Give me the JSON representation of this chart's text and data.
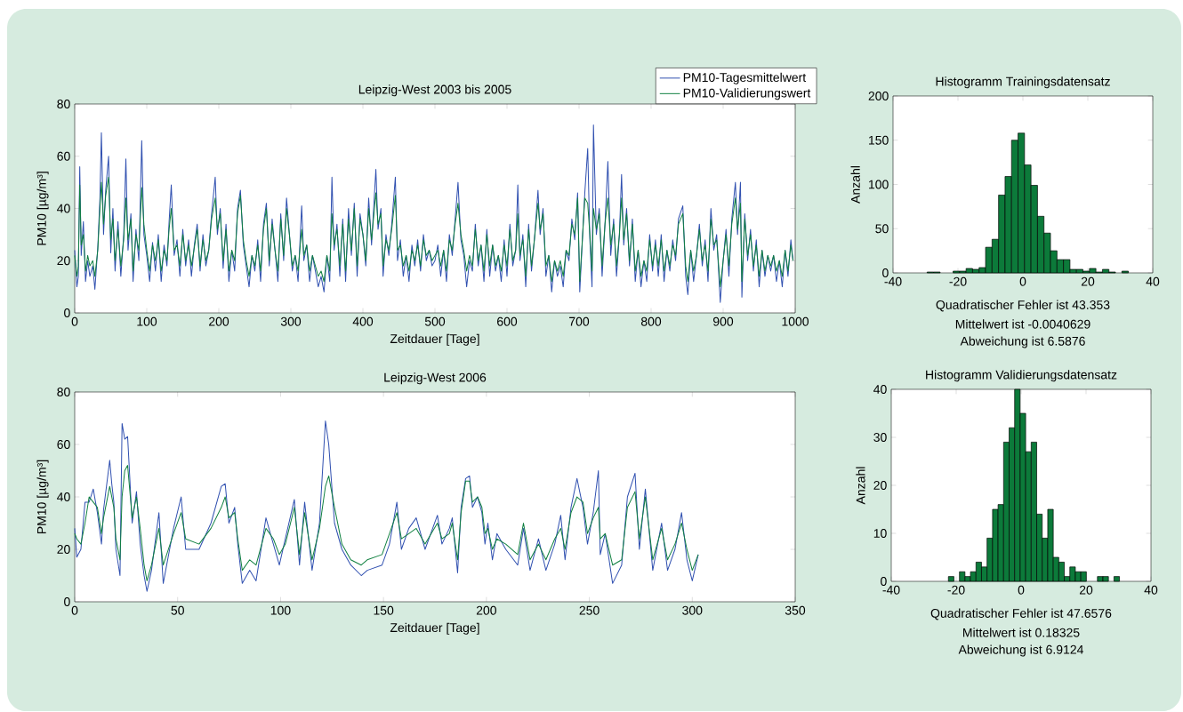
{
  "chart_data": [
    {
      "type": "line",
      "title": "Leipzig-West 2003 bis 2005",
      "xlabel": "Zeitdauer [Tage]",
      "ylabel": "PM10 [µg/m³]",
      "xlim": [
        0,
        1000
      ],
      "ylim": [
        0,
        80
      ],
      "xticks": [
        0,
        100,
        200,
        300,
        400,
        500,
        600,
        700,
        800,
        900,
        1000
      ],
      "yticks": [
        0,
        20,
        40,
        60,
        80
      ],
      "legend": "top right",
      "x": [
        0,
        3,
        5,
        7,
        9,
        12,
        15,
        18,
        21,
        25,
        28,
        32,
        35,
        37,
        40,
        43,
        47,
        50,
        53,
        56,
        60,
        64,
        68,
        71,
        74,
        78,
        81,
        85,
        89,
        93,
        96,
        100,
        104,
        108,
        112,
        116,
        120,
        124,
        128,
        131,
        134,
        138,
        142,
        146,
        150,
        154,
        158,
        162,
        166,
        170,
        174,
        178,
        182,
        186,
        190,
        195,
        198,
        202,
        206,
        210,
        214,
        218,
        222,
        226,
        230,
        234,
        238,
        242,
        246,
        250,
        254,
        258,
        262,
        266,
        270,
        274,
        278,
        282,
        286,
        290,
        294,
        298,
        302,
        306,
        310,
        315,
        318,
        322,
        326,
        330,
        334,
        338,
        342,
        346,
        350,
        354,
        357,
        360,
        364,
        368,
        372,
        376,
        380,
        384,
        388,
        392,
        396,
        400,
        404,
        408,
        412,
        418,
        421,
        425,
        428,
        432,
        436,
        440,
        445,
        448,
        452,
        456,
        460,
        464,
        468,
        472,
        476,
        480,
        484,
        488,
        492,
        496,
        500,
        504,
        508,
        512,
        516,
        520,
        524,
        528,
        532,
        536,
        540,
        544,
        548,
        552,
        556,
        560,
        564,
        568,
        572,
        576,
        580,
        584,
        588,
        592,
        596,
        600,
        604,
        608,
        612,
        615,
        618,
        622,
        626,
        630,
        634,
        638,
        643,
        646,
        650,
        654,
        658,
        662,
        666,
        670,
        674,
        678,
        682,
        686,
        690,
        694,
        698,
        701,
        705,
        708,
        712,
        715,
        718,
        720,
        724,
        728,
        732,
        736,
        740,
        744,
        748,
        752,
        756,
        759,
        762,
        766,
        770,
        774,
        778,
        782,
        786,
        790,
        794,
        798,
        802,
        806,
        810,
        814,
        818,
        822,
        826,
        830,
        834,
        838,
        844,
        848,
        851,
        855,
        859,
        863,
        867,
        871,
        875,
        879,
        883,
        887,
        891,
        896,
        900,
        904,
        908,
        912,
        917,
        920,
        924,
        926,
        930,
        934,
        938,
        942,
        946,
        950,
        954,
        958,
        962,
        966,
        970,
        974,
        978,
        982,
        986,
        990,
        994,
        997
      ],
      "series": [
        {
          "name": "PM10-Tagesmittelwert",
          "color": "#3050b0",
          "values": [
            24,
            10,
            14,
            56,
            22,
            35,
            12,
            20,
            14,
            18,
            9,
            25,
            44,
            69,
            30,
            47,
            60,
            23,
            40,
            16,
            35,
            14,
            30,
            59,
            24,
            38,
            12,
            32,
            20,
            66,
            30,
            22,
            12,
            27,
            16,
            30,
            12,
            26,
            18,
            35,
            49,
            22,
            28,
            14,
            32,
            18,
            28,
            14,
            26,
            34,
            16,
            30,
            18,
            24,
            38,
            52,
            30,
            40,
            17,
            34,
            12,
            24,
            16,
            40,
            47,
            26,
            18,
            10,
            22,
            16,
            28,
            12,
            34,
            42,
            18,
            36,
            24,
            12,
            38,
            20,
            44,
            30,
            16,
            22,
            12,
            41,
            20,
            26,
            12,
            22,
            16,
            10,
            14,
            8,
            22,
            12,
            52,
            24,
            34,
            14,
            36,
            12,
            40,
            22,
            42,
            14,
            38,
            30,
            18,
            44,
            26,
            55,
            32,
            40,
            14,
            30,
            22,
            34,
            52,
            20,
            28,
            14,
            22,
            12,
            26,
            18,
            28,
            16,
            30,
            20,
            24,
            18,
            20,
            26,
            14,
            24,
            12,
            30,
            22,
            36,
            50,
            28,
            22,
            10,
            20,
            16,
            34,
            18,
            26,
            12,
            32,
            14,
            26,
            16,
            22,
            12,
            28,
            14,
            34,
            18,
            24,
            49,
            20,
            30,
            10,
            34,
            16,
            28,
            47,
            30,
            40,
            14,
            22,
            8,
            20,
            14,
            18,
            10,
            24,
            20,
            36,
            28,
            46,
            8,
            30,
            46,
            63,
            28,
            10,
            72,
            30,
            40,
            14,
            34,
            58,
            22,
            36,
            14,
            30,
            53,
            26,
            40,
            18,
            36,
            12,
            24,
            10,
            20,
            12,
            30,
            16,
            28,
            14,
            30,
            12,
            24,
            16,
            28,
            20,
            36,
            41,
            14,
            7,
            24,
            12,
            22,
            34,
            18,
            28,
            12,
            40,
            24,
            30,
            4,
            20,
            32,
            14,
            36,
            50,
            30,
            50,
            6,
            38,
            20,
            32,
            16,
            28,
            10,
            24,
            14,
            22,
            16,
            22,
            12,
            20,
            10,
            24,
            14,
            28,
            20
          ]
        },
        {
          "name": "PM10-Validierungswert",
          "color": "#108040",
          "values": [
            22,
            14,
            18,
            49,
            26,
            30,
            16,
            22,
            18,
            20,
            14,
            24,
            40,
            50,
            34,
            45,
            52,
            28,
            36,
            20,
            32,
            18,
            28,
            44,
            28,
            36,
            16,
            30,
            24,
            48,
            34,
            24,
            16,
            26,
            20,
            28,
            16,
            24,
            20,
            32,
            40,
            24,
            26,
            18,
            30,
            20,
            26,
            18,
            25,
            32,
            18,
            28,
            20,
            24,
            36,
            44,
            32,
            38,
            20,
            32,
            16,
            24,
            20,
            38,
            45,
            28,
            20,
            14,
            22,
            18,
            26,
            16,
            32,
            40,
            20,
            34,
            24,
            16,
            36,
            22,
            40,
            30,
            18,
            22,
            16,
            32,
            22,
            26,
            16,
            22,
            18,
            14,
            16,
            12,
            22,
            16,
            38,
            26,
            32,
            18,
            34,
            16,
            36,
            24,
            40,
            18,
            36,
            30,
            20,
            40,
            28,
            46,
            34,
            38,
            18,
            28,
            24,
            32,
            45,
            24,
            26,
            18,
            22,
            16,
            24,
            20,
            26,
            18,
            28,
            22,
            24,
            20,
            22,
            24,
            18,
            24,
            16,
            28,
            24,
            34,
            42,
            30,
            24,
            16,
            22,
            18,
            32,
            20,
            26,
            16,
            30,
            18,
            26,
            18,
            22,
            16,
            26,
            18,
            32,
            20,
            24,
            38,
            22,
            28,
            14,
            32,
            18,
            28,
            42,
            32,
            38,
            18,
            22,
            12,
            20,
            16,
            20,
            14,
            24,
            22,
            34,
            30,
            44,
            12,
            30,
            44,
            42,
            30,
            16,
            40,
            32,
            38,
            18,
            34,
            44,
            26,
            34,
            18,
            30,
            44,
            28,
            38,
            20,
            34,
            16,
            24,
            14,
            20,
            16,
            28,
            18,
            26,
            18,
            28,
            16,
            24,
            18,
            26,
            22,
            34,
            38,
            18,
            12,
            24,
            16,
            22,
            32,
            20,
            26,
            16,
            36,
            26,
            28,
            10,
            20,
            30,
            18,
            34,
            44,
            32,
            42,
            12,
            36,
            22,
            30,
            18,
            26,
            14,
            24,
            16,
            22,
            18,
            22,
            16,
            20,
            14,
            24,
            16,
            26,
            20
          ]
        }
      ]
    },
    {
      "type": "histogram",
      "title": "Histogramm Trainingsdatensatz",
      "ylabel": "Anzahl",
      "xlim": [
        -40,
        40
      ],
      "ylim": [
        0,
        200
      ],
      "xticks": [
        -40,
        -20,
        0,
        20,
        40
      ],
      "yticks": [
        0,
        50,
        100,
        150,
        200
      ],
      "color": "#0c7a3a",
      "bins": [
        -29.5,
        -27.5,
        -25.5,
        -23.5,
        -21.5,
        -19.5,
        -17.5,
        -15.5,
        -13.5,
        -11.5,
        -9.5,
        -7.5,
        -5.5,
        -3.5,
        -1.5,
        0.5,
        2.5,
        4.5,
        6.5,
        8.5,
        10.5,
        12.5,
        14.5,
        16.5,
        18.5,
        20.5,
        22.5,
        24.5,
        26.5,
        28.5,
        30.5,
        32.5
      ],
      "values": [
        1,
        1,
        0,
        0,
        2,
        2,
        5,
        4,
        6,
        29,
        38,
        88,
        109,
        150,
        158,
        122,
        99,
        64,
        45,
        25,
        15,
        15,
        4,
        4,
        2,
        5,
        1,
        4,
        1,
        0,
        2
      ],
      "annotations": [
        "Quadratischer Fehler ist 43.353",
        "Mittelwert ist -0.0040629",
        "Abweichung ist 6.5876"
      ]
    },
    {
      "type": "line",
      "title": "Leipzig-West 2006",
      "xlabel": "Zeitdauer [Tage]",
      "ylabel": "PM10 [µg/m³]",
      "xlim": [
        0,
        350
      ],
      "ylim": [
        0,
        80
      ],
      "xticks": [
        0,
        50,
        100,
        150,
        200,
        250,
        300,
        350
      ],
      "yticks": [
        0,
        20,
        40,
        60,
        80
      ],
      "x": [
        0,
        1,
        3,
        5,
        7,
        9,
        11,
        13,
        14,
        17,
        18,
        19,
        20,
        22,
        23,
        24.3,
        25.7,
        27.9,
        30,
        31.8,
        33.7,
        35.1,
        37.3,
        40.9,
        43,
        48,
        51.7,
        53.9,
        60.4,
        66.2,
        71.2,
        73.1,
        74.9,
        77.7,
        79.2,
        81.4,
        85,
        88.1,
        92.9,
        96.5,
        99.4,
        102.3,
        106.7,
        109.2,
        111.7,
        115.3,
        118.9,
        121.8,
        123.4,
        126.2,
        129.8,
        134.1,
        139.2,
        142.1,
        149.3,
        152.9,
        156.5,
        158.7,
        162.3,
        165.9,
        170.2,
        176.2,
        178.4,
        182,
        183.4,
        186,
        187.7,
        189.9,
        191.8,
        193.2,
        195.7,
        197.8,
        199.3,
        200.7,
        202.9,
        205.1,
        209.4,
        215.2,
        218,
        221.2,
        225.3,
        228.9,
        233.2,
        236.1,
        238.2,
        241.1,
        244,
        246.9,
        249.1,
        251.9,
        254.4,
        255.3,
        257.7,
        261.3,
        265.7,
        268.5,
        272.2,
        274.3,
        277.2,
        280.8,
        285.1,
        288,
        291.6,
        294.8,
        297.4,
        300,
        302.9
      ],
      "series": [
        {
          "color": "#3050b0",
          "values": [
            28,
            17,
            20,
            38,
            38,
            43,
            34,
            22,
            35,
            54,
            45,
            38,
            20,
            10,
            68,
            62,
            63,
            30,
            42,
            22,
            10,
            4,
            12,
            34,
            7,
            28,
            40,
            20,
            20,
            30,
            44,
            45,
            30,
            36,
            22,
            7,
            12,
            8,
            32,
            22,
            14,
            24,
            39,
            14,
            38,
            12,
            30,
            69,
            60,
            30,
            20,
            14,
            10,
            12,
            14,
            22,
            38,
            20,
            28,
            32,
            20,
            33,
            22,
            28,
            32,
            11,
            36,
            47,
            48,
            36,
            40,
            34,
            22,
            30,
            16,
            26,
            20,
            14,
            28,
            12,
            24,
            12,
            22,
            33,
            16,
            36,
            47,
            36,
            22,
            34,
            50,
            18,
            26,
            7,
            14,
            40,
            49,
            20,
            43,
            12,
            30,
            12,
            20,
            34,
            16,
            8,
            18
          ]
        },
        {
          "color": "#108040",
          "values": [
            26,
            24,
            22,
            30,
            40,
            38,
            36,
            26,
            32,
            44,
            40,
            36,
            24,
            16,
            40,
            50,
            52,
            32,
            40,
            28,
            14,
            8,
            14,
            28,
            14,
            26,
            34,
            24,
            22,
            28,
            36,
            40,
            32,
            34,
            24,
            12,
            16,
            14,
            28,
            24,
            18,
            22,
            36,
            18,
            34,
            16,
            28,
            44,
            48,
            36,
            22,
            16,
            14,
            16,
            18,
            26,
            34,
            24,
            26,
            28,
            22,
            30,
            24,
            26,
            30,
            16,
            34,
            46,
            46,
            38,
            40,
            36,
            26,
            28,
            20,
            24,
            22,
            18,
            30,
            16,
            22,
            16,
            24,
            28,
            20,
            34,
            40,
            38,
            26,
            32,
            36,
            24,
            26,
            14,
            16,
            36,
            42,
            24,
            40,
            16,
            28,
            16,
            22,
            30,
            20,
            12,
            18
          ]
        }
      ]
    },
    {
      "type": "histogram",
      "title": "Histogramm Validierungsdatensatz",
      "ylabel": "Anzahl",
      "xlim": [
        -40,
        40
      ],
      "ylim": [
        0,
        40
      ],
      "xticks": [
        -40,
        -20,
        0,
        20,
        40
      ],
      "yticks": [
        0,
        10,
        20,
        30,
        40
      ],
      "color": "#0c7a3a",
      "bins": [
        -22.4,
        -20.7,
        -19.0,
        -17.3,
        -15.6,
        -13.9,
        -12.2,
        -10.5,
        -8.8,
        -7.1,
        -5.4,
        -3.7,
        -2.0,
        -0.3,
        1.4,
        3.1,
        4.8,
        6.5,
        8.2,
        9.9,
        11.6,
        13.3,
        15.0,
        16.7,
        18.4,
        20.1,
        21.8,
        23.5,
        25.2,
        26.9,
        28.6,
        30.3
      ],
      "values": [
        1,
        0,
        2,
        1,
        2,
        4,
        3,
        9,
        15,
        16,
        29,
        32,
        40,
        35,
        27,
        29,
        14,
        9,
        15,
        5,
        4,
        1,
        3,
        2,
        2,
        0,
        0,
        1,
        1,
        0,
        1
      ],
      "annotations": [
        "Quadratischer Fehler ist 47.6576",
        "Mittelwert ist 0.18325",
        "Abweichung ist 6.9124"
      ]
    }
  ]
}
